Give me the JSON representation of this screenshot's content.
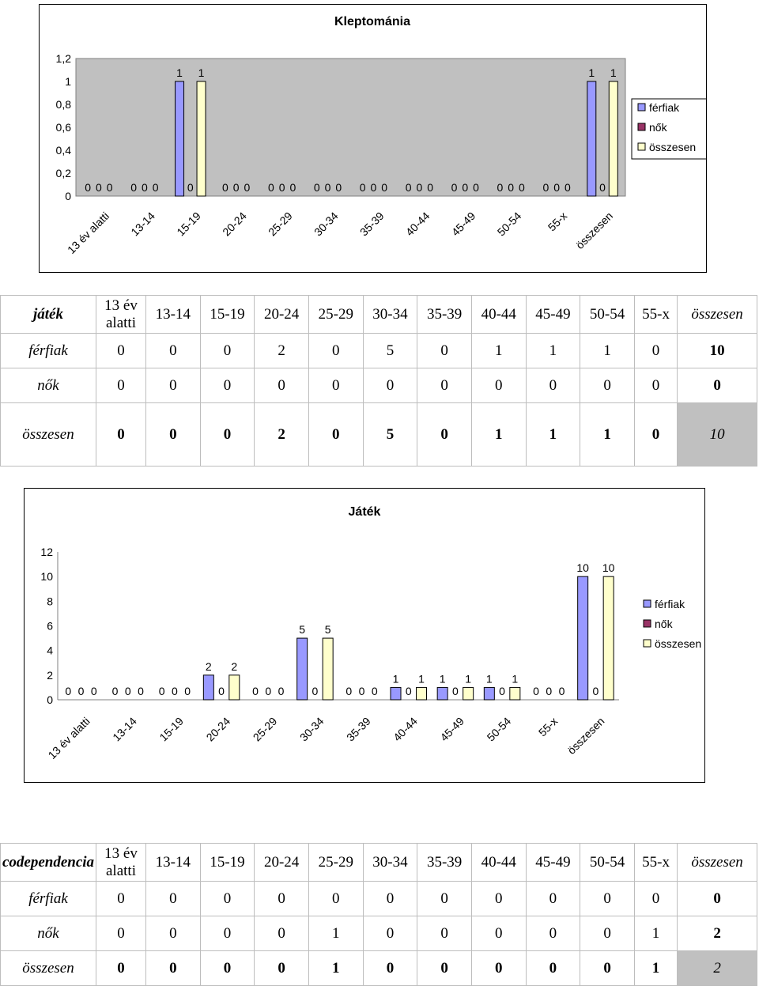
{
  "colors": {
    "ferfiak": "#9999ff",
    "nok": "#993366",
    "osszesen": "#ffffcc",
    "plot_bg": "#c0c0c0"
  },
  "chart1": {
    "title": "Kleptománia",
    "y_ticks": [
      "1,2",
      "1",
      "0,8",
      "0,6",
      "0,4",
      "0,2",
      "0"
    ],
    "legend": [
      "férfiak",
      "nők",
      "összesen"
    ],
    "chart_data": {
      "type": "bar",
      "title": "Kleptománia",
      "categories": [
        "13 év alatti",
        "13-14",
        "15-19",
        "20-24",
        "25-29",
        "30-34",
        "35-39",
        "40-44",
        "45-49",
        "50-54",
        "55-x",
        "összesen"
      ],
      "series": [
        {
          "name": "férfiak",
          "values": [
            0,
            0,
            1,
            0,
            0,
            0,
            0,
            0,
            0,
            0,
            0,
            1
          ]
        },
        {
          "name": "nők",
          "values": [
            0,
            0,
            0,
            0,
            0,
            0,
            0,
            0,
            0,
            0,
            0,
            0
          ]
        },
        {
          "name": "összesen",
          "values": [
            0,
            0,
            1,
            0,
            0,
            0,
            0,
            0,
            0,
            0,
            0,
            1
          ]
        }
      ],
      "ylim": [
        0,
        1.2
      ],
      "grid": false,
      "legend_position": "right"
    }
  },
  "table1": {
    "header": [
      "játék",
      "13 év alatti",
      "13-14",
      "15-19",
      "20-24",
      "25-29",
      "30-34",
      "35-39",
      "40-44",
      "45-49",
      "50-54",
      "55-x",
      "összesen"
    ],
    "rows": [
      {
        "label": "férfiak",
        "values": [
          "0",
          "0",
          "0",
          "2",
          "0",
          "5",
          "0",
          "1",
          "1",
          "1",
          "0"
        ],
        "total": "10"
      },
      {
        "label": "nők",
        "values": [
          "0",
          "0",
          "0",
          "0",
          "0",
          "0",
          "0",
          "0",
          "0",
          "0",
          "0"
        ],
        "total": "0"
      },
      {
        "label": "összesen",
        "values": [
          "0",
          "0",
          "0",
          "2",
          "0",
          "5",
          "0",
          "1",
          "1",
          "1",
          "0"
        ],
        "total": "10"
      }
    ]
  },
  "chart2": {
    "title": "Játék",
    "y_ticks": [
      "12",
      "10",
      "8",
      "6",
      "4",
      "2",
      "0"
    ],
    "legend": [
      "férfiak",
      "nők",
      "összesen"
    ],
    "chart_data": {
      "type": "bar",
      "title": "Játék",
      "categories": [
        "13 év alatti",
        "13-14",
        "15-19",
        "20-24",
        "25-29",
        "30-34",
        "35-39",
        "40-44",
        "45-49",
        "50-54",
        "55-x",
        "összesen"
      ],
      "series": [
        {
          "name": "férfiak",
          "values": [
            0,
            0,
            0,
            2,
            0,
            5,
            0,
            1,
            1,
            1,
            0,
            10
          ]
        },
        {
          "name": "nők",
          "values": [
            0,
            0,
            0,
            0,
            0,
            0,
            0,
            0,
            0,
            0,
            0,
            0
          ]
        },
        {
          "name": "összesen",
          "values": [
            0,
            0,
            0,
            2,
            0,
            5,
            0,
            1,
            1,
            1,
            0,
            10
          ]
        }
      ],
      "ylim": [
        0,
        12
      ],
      "grid": false,
      "legend_position": "right"
    }
  },
  "table2": {
    "header": [
      "codependencia",
      "13 év alatti",
      "13-14",
      "15-19",
      "20-24",
      "25-29",
      "30-34",
      "35-39",
      "40-44",
      "45-49",
      "50-54",
      "55-x",
      "összesen"
    ],
    "rows": [
      {
        "label": "férfiak",
        "values": [
          "0",
          "0",
          "0",
          "0",
          "0",
          "0",
          "0",
          "0",
          "0",
          "0",
          "0"
        ],
        "total": "0"
      },
      {
        "label": "nők",
        "values": [
          "0",
          "0",
          "0",
          "0",
          "1",
          "0",
          "0",
          "0",
          "0",
          "0",
          "1"
        ],
        "total": "2"
      },
      {
        "label": "összesen",
        "values": [
          "0",
          "0",
          "0",
          "0",
          "1",
          "0",
          "0",
          "0",
          "0",
          "0",
          "1"
        ],
        "total": "2"
      }
    ]
  }
}
